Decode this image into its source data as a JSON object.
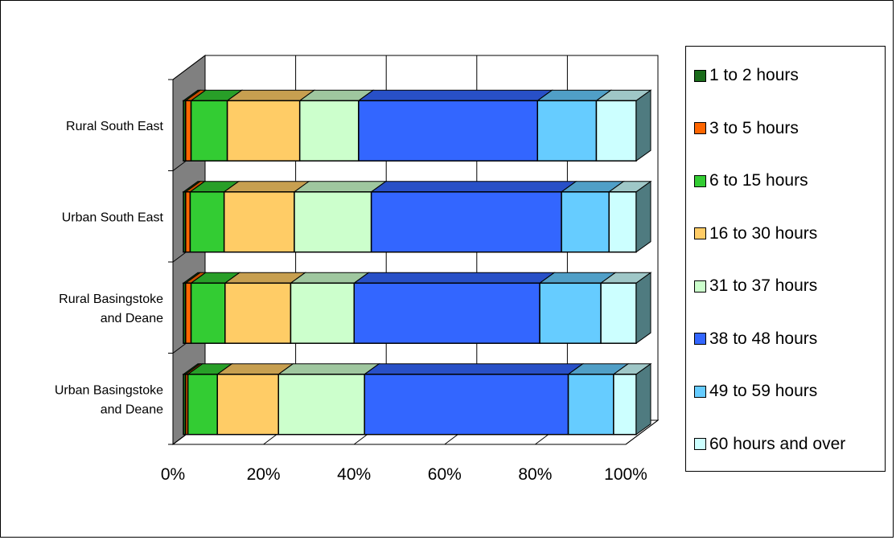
{
  "chart_data": {
    "type": "bar",
    "orientation": "horizontal",
    "stacked": "percent",
    "three_d": true,
    "categories": [
      "Rural South East",
      "Urban South East",
      "Rural Basingstoke and Deane",
      "Urban Basingstoke and Deane"
    ],
    "category_lines": [
      [
        "Rural South East"
      ],
      [
        "Urban South East"
      ],
      [
        "Rural Basingstoke",
        "and Deane"
      ],
      [
        "Urban Basingstoke",
        "and Deane"
      ]
    ],
    "series": [
      {
        "name": "1 to 2 hours",
        "color": "#1a6b1a",
        "values": [
          0.5,
          0.5,
          0.5,
          0.5
        ]
      },
      {
        "name": "3 to 5 hours",
        "color": "#ff6600",
        "values": [
          1.2,
          1.0,
          1.2,
          0.5
        ]
      },
      {
        "name": "6 to 15 hours",
        "color": "#33cc33",
        "values": [
          8.0,
          7.5,
          7.5,
          6.5
        ]
      },
      {
        "name": "16 to 30 hours",
        "color": "#ffcc66",
        "values": [
          16.0,
          15.5,
          14.5,
          13.5
        ]
      },
      {
        "name": "31 to 37 hours",
        "color": "#ccffcc",
        "values": [
          13.0,
          17.0,
          14.0,
          19.0
        ]
      },
      {
        "name": "38 to 48 hours",
        "color": "#3366ff",
        "values": [
          39.5,
          42.0,
          41.0,
          45.0
        ]
      },
      {
        "name": "49 to 59 hours",
        "color": "#66ccff",
        "values": [
          13.0,
          10.5,
          13.5,
          10.0
        ]
      },
      {
        "name": "60 hours and over",
        "color": "#ccffff",
        "values": [
          8.8,
          6.0,
          7.8,
          5.0
        ]
      }
    ],
    "x_ticks": [
      "0%",
      "20%",
      "40%",
      "60%",
      "80%",
      "100%"
    ],
    "xlim": [
      0,
      100
    ],
    "grid": true,
    "legend_position": "right"
  }
}
